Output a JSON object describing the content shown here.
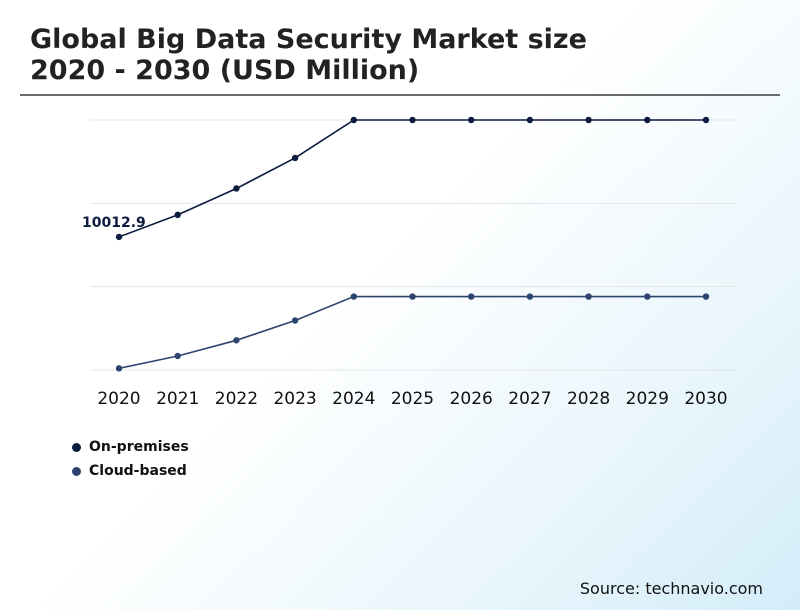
{
  "title_lines": [
    "Global Big Data Security Market size",
    "2020 - 2030 (USD Million)"
  ],
  "source": "Source: technavio.com",
  "colors": {
    "on_premises": "#0c1c3e",
    "cloud_based": "#2e4470",
    "grid": "#e3e7ec",
    "title": "#222222"
  },
  "chart_data": {
    "type": "line",
    "title": "Global Big Data Security Market size 2020 - 2030 (USD Million)",
    "x": [
      "2020",
      "2021",
      "2022",
      "2023",
      "2024",
      "2025",
      "2026",
      "2027",
      "2028",
      "2029",
      "2030"
    ],
    "series": [
      {
        "name": "On-premises",
        "values": [
          10012.9,
          10280,
          10600,
          10970,
          11430,
          11430,
          11430,
          11430,
          11430,
          11430,
          11430
        ]
      },
      {
        "name": "Cloud-based",
        "values": [
          8420,
          8570,
          8760,
          9000,
          9290,
          9290,
          9290,
          9290,
          9290,
          9290,
          9290
        ]
      }
    ],
    "annotations": [
      {
        "series": 0,
        "index": 0,
        "text": "10012.9"
      }
    ],
    "ylim": [
      8400,
      11430
    ],
    "grid": true,
    "legend": "bottom-left",
    "y_tick_labels_shown": false
  }
}
